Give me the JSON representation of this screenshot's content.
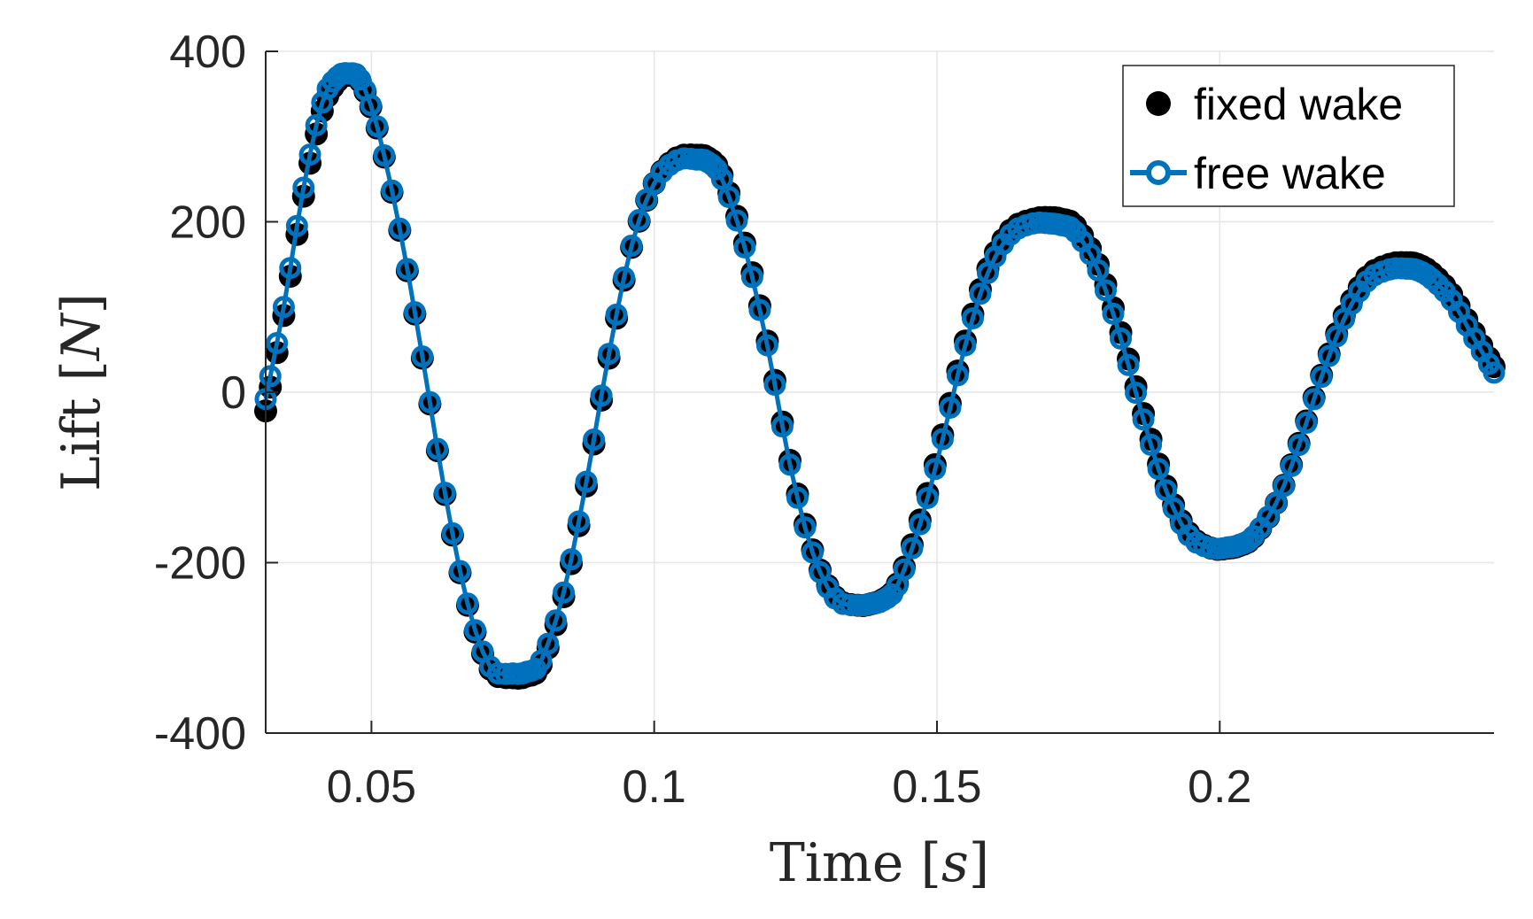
{
  "chart_data": {
    "type": "line",
    "title": "",
    "xlabel": "Time",
    "xlabel_unit": "s",
    "ylabel": "Lift",
    "ylabel_unit": "N",
    "xlim": [
      0.0313,
      0.2485
    ],
    "ylim": [
      -400,
      400
    ],
    "xticks": [
      0.05,
      0.1,
      0.15,
      0.2
    ],
    "xtick_labels": [
      "0.05",
      "0.1",
      "0.15",
      "0.2"
    ],
    "yticks": [
      -400,
      -200,
      0,
      200,
      400
    ],
    "ytick_labels": [
      "-400",
      "-200",
      "0",
      "200",
      "400"
    ],
    "grid": true,
    "legend_position": "top-right",
    "series": [
      {
        "name": "fixed wake",
        "style": "markers-filled",
        "color": "#000000",
        "x": [
          0.0313,
          0.0345,
          0.038,
          0.0413,
          0.044,
          0.046,
          0.048,
          0.051,
          0.055,
          0.059,
          0.063,
          0.067,
          0.071,
          0.075,
          0.0775,
          0.08,
          0.084,
          0.088,
          0.092,
          0.096,
          0.1,
          0.104,
          0.1075,
          0.1095,
          0.112,
          0.116,
          0.12,
          0.124,
          0.128,
          0.132,
          0.136,
          0.1385,
          0.1405,
          0.143,
          0.147,
          0.151,
          0.155,
          0.159,
          0.163,
          0.167,
          0.17,
          0.172,
          0.1745,
          0.1785,
          0.1825,
          0.1865,
          0.1905,
          0.1945,
          0.1985,
          0.2015,
          0.2035,
          0.206,
          0.21,
          0.214,
          0.218,
          0.222,
          0.226,
          0.23,
          0.233,
          0.235,
          0.2375,
          0.241,
          0.245,
          0.2485
        ],
        "y": [
          -22,
          90,
          230,
          330,
          365,
          372,
          365,
          310,
          190,
          40,
          -120,
          -250,
          -325,
          -335,
          -333,
          -320,
          -240,
          -110,
          40,
          170,
          245,
          275,
          278,
          275,
          255,
          175,
          60,
          -80,
          -185,
          -240,
          -250,
          -248,
          -243,
          -225,
          -150,
          -50,
          60,
          145,
          190,
          203,
          205,
          203,
          195,
          150,
          70,
          -25,
          -110,
          -165,
          -183,
          -183,
          -180,
          -170,
          -130,
          -60,
          20,
          90,
          135,
          150,
          152,
          150,
          140,
          115,
          70,
          30
        ]
      },
      {
        "name": "free wake",
        "style": "line-open-markers",
        "color": "#0072bd",
        "x": [
          0.0313,
          0.0345,
          0.038,
          0.0413,
          0.044,
          0.046,
          0.048,
          0.051,
          0.055,
          0.059,
          0.063,
          0.067,
          0.071,
          0.075,
          0.0775,
          0.08,
          0.084,
          0.088,
          0.092,
          0.096,
          0.1,
          0.104,
          0.1075,
          0.1095,
          0.112,
          0.116,
          0.12,
          0.124,
          0.128,
          0.132,
          0.136,
          0.1385,
          0.1405,
          0.143,
          0.147,
          0.151,
          0.155,
          0.159,
          0.163,
          0.167,
          0.17,
          0.172,
          0.1745,
          0.1785,
          0.1825,
          0.1865,
          0.1905,
          0.1945,
          0.1985,
          0.2015,
          0.2035,
          0.206,
          0.21,
          0.214,
          0.218,
          0.222,
          0.226,
          0.23,
          0.233,
          0.235,
          0.2375,
          0.241,
          0.245,
          0.2485
        ],
        "y": [
          -8,
          100,
          240,
          340,
          370,
          374,
          367,
          312,
          192,
          42,
          -118,
          -248,
          -322,
          -330,
          -328,
          -315,
          -235,
          -105,
          45,
          172,
          245,
          272,
          273,
          270,
          250,
          170,
          55,
          -85,
          -188,
          -242,
          -250,
          -248,
          -244,
          -227,
          -155,
          -55,
          55,
          140,
          185,
          198,
          198,
          196,
          188,
          143,
          63,
          -32,
          -115,
          -168,
          -183,
          -182,
          -179,
          -169,
          -130,
          -62,
          18,
          86,
          130,
          144,
          145,
          143,
          133,
          108,
          63,
          23
        ]
      }
    ]
  }
}
